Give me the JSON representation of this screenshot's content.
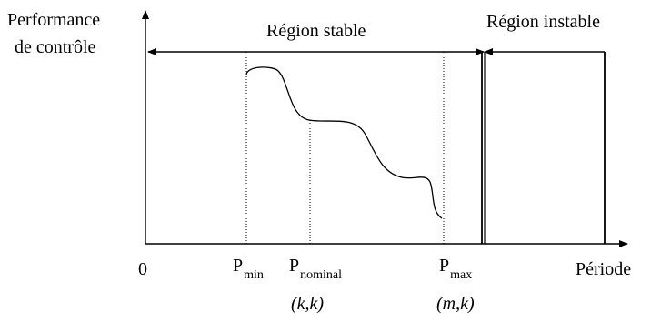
{
  "axes": {
    "y_label_line1": "Performance",
    "y_label_line2": "de contrôle",
    "x_label": "Période",
    "origin": "0"
  },
  "regions": {
    "stable": "Région stable",
    "unstable": "Région instable"
  },
  "markers": {
    "p_main": "P",
    "min_sub": "min",
    "nominal_sub": "nominal",
    "max_sub": "max",
    "nominal_pair": "(k,k)",
    "max_pair": "(m,k)"
  }
}
